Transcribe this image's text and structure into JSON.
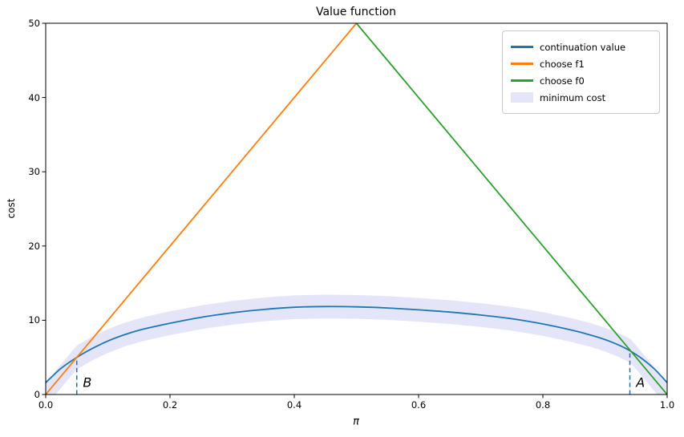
{
  "chart_data": {
    "type": "line",
    "title": "Value function",
    "xlabel": "π",
    "ylabel": "cost",
    "xlim": [
      0,
      1
    ],
    "ylim": [
      0,
      50
    ],
    "grid": false,
    "xtick_labels": [
      "0.0",
      "0.2",
      "0.4",
      "0.6",
      "0.8",
      "1.0"
    ],
    "ytick_labels": [
      "0",
      "10",
      "20",
      "30",
      "40",
      "50"
    ],
    "series": [
      {
        "name": "continuation value",
        "color": "#1f77b4",
        "points": [
          [
            0.0,
            1.6
          ],
          [
            0.01,
            2.4
          ],
          [
            0.025,
            3.55
          ],
          [
            0.05,
            5.0
          ],
          [
            0.075,
            6.2
          ],
          [
            0.1,
            7.2
          ],
          [
            0.125,
            8.0
          ],
          [
            0.15,
            8.65
          ],
          [
            0.175,
            9.15
          ],
          [
            0.2,
            9.6
          ],
          [
            0.25,
            10.4
          ],
          [
            0.3,
            11.0
          ],
          [
            0.35,
            11.45
          ],
          [
            0.4,
            11.75
          ],
          [
            0.45,
            11.85
          ],
          [
            0.5,
            11.8
          ],
          [
            0.55,
            11.65
          ],
          [
            0.6,
            11.4
          ],
          [
            0.65,
            11.1
          ],
          [
            0.7,
            10.7
          ],
          [
            0.75,
            10.2
          ],
          [
            0.8,
            9.5
          ],
          [
            0.85,
            8.6
          ],
          [
            0.875,
            8.05
          ],
          [
            0.9,
            7.4
          ],
          [
            0.925,
            6.55
          ],
          [
            0.94,
            5.9
          ],
          [
            0.96,
            4.8
          ],
          [
            0.98,
            3.4
          ],
          [
            1.0,
            1.6
          ]
        ]
      },
      {
        "name": "choose f1",
        "color": "#ff7f0e",
        "points": [
          [
            0.0,
            0
          ],
          [
            0.5,
            50
          ]
        ]
      },
      {
        "name": "choose f0",
        "color": "#2ca02c",
        "points": [
          [
            0.5,
            50
          ],
          [
            1.0,
            0
          ]
        ]
      }
    ],
    "band": {
      "name": "minimum cost",
      "color": "#e5e5fa",
      "halfwidth": 1.6
    },
    "annotations": [
      {
        "label": "B",
        "line_x": 0.05,
        "line_top": 5.0,
        "text_x": 0.067,
        "text_y": 1.6,
        "line_color": "#1f77b4"
      },
      {
        "label": "A",
        "line_x": 0.94,
        "line_top": 5.85,
        "text_x": 0.957,
        "text_y": 1.6,
        "line_color": "#1f77b4"
      }
    ],
    "legend": {
      "position": "upper right",
      "entries": [
        {
          "label": "continuation value",
          "color": "#1f77b4",
          "type": "line"
        },
        {
          "label": "choose f1",
          "color": "#ff7f0e",
          "type": "line"
        },
        {
          "label": "choose f0",
          "color": "#2ca02c",
          "type": "line"
        },
        {
          "label": "minimum cost",
          "color": "#e5e5fa",
          "type": "patch"
        }
      ]
    }
  }
}
